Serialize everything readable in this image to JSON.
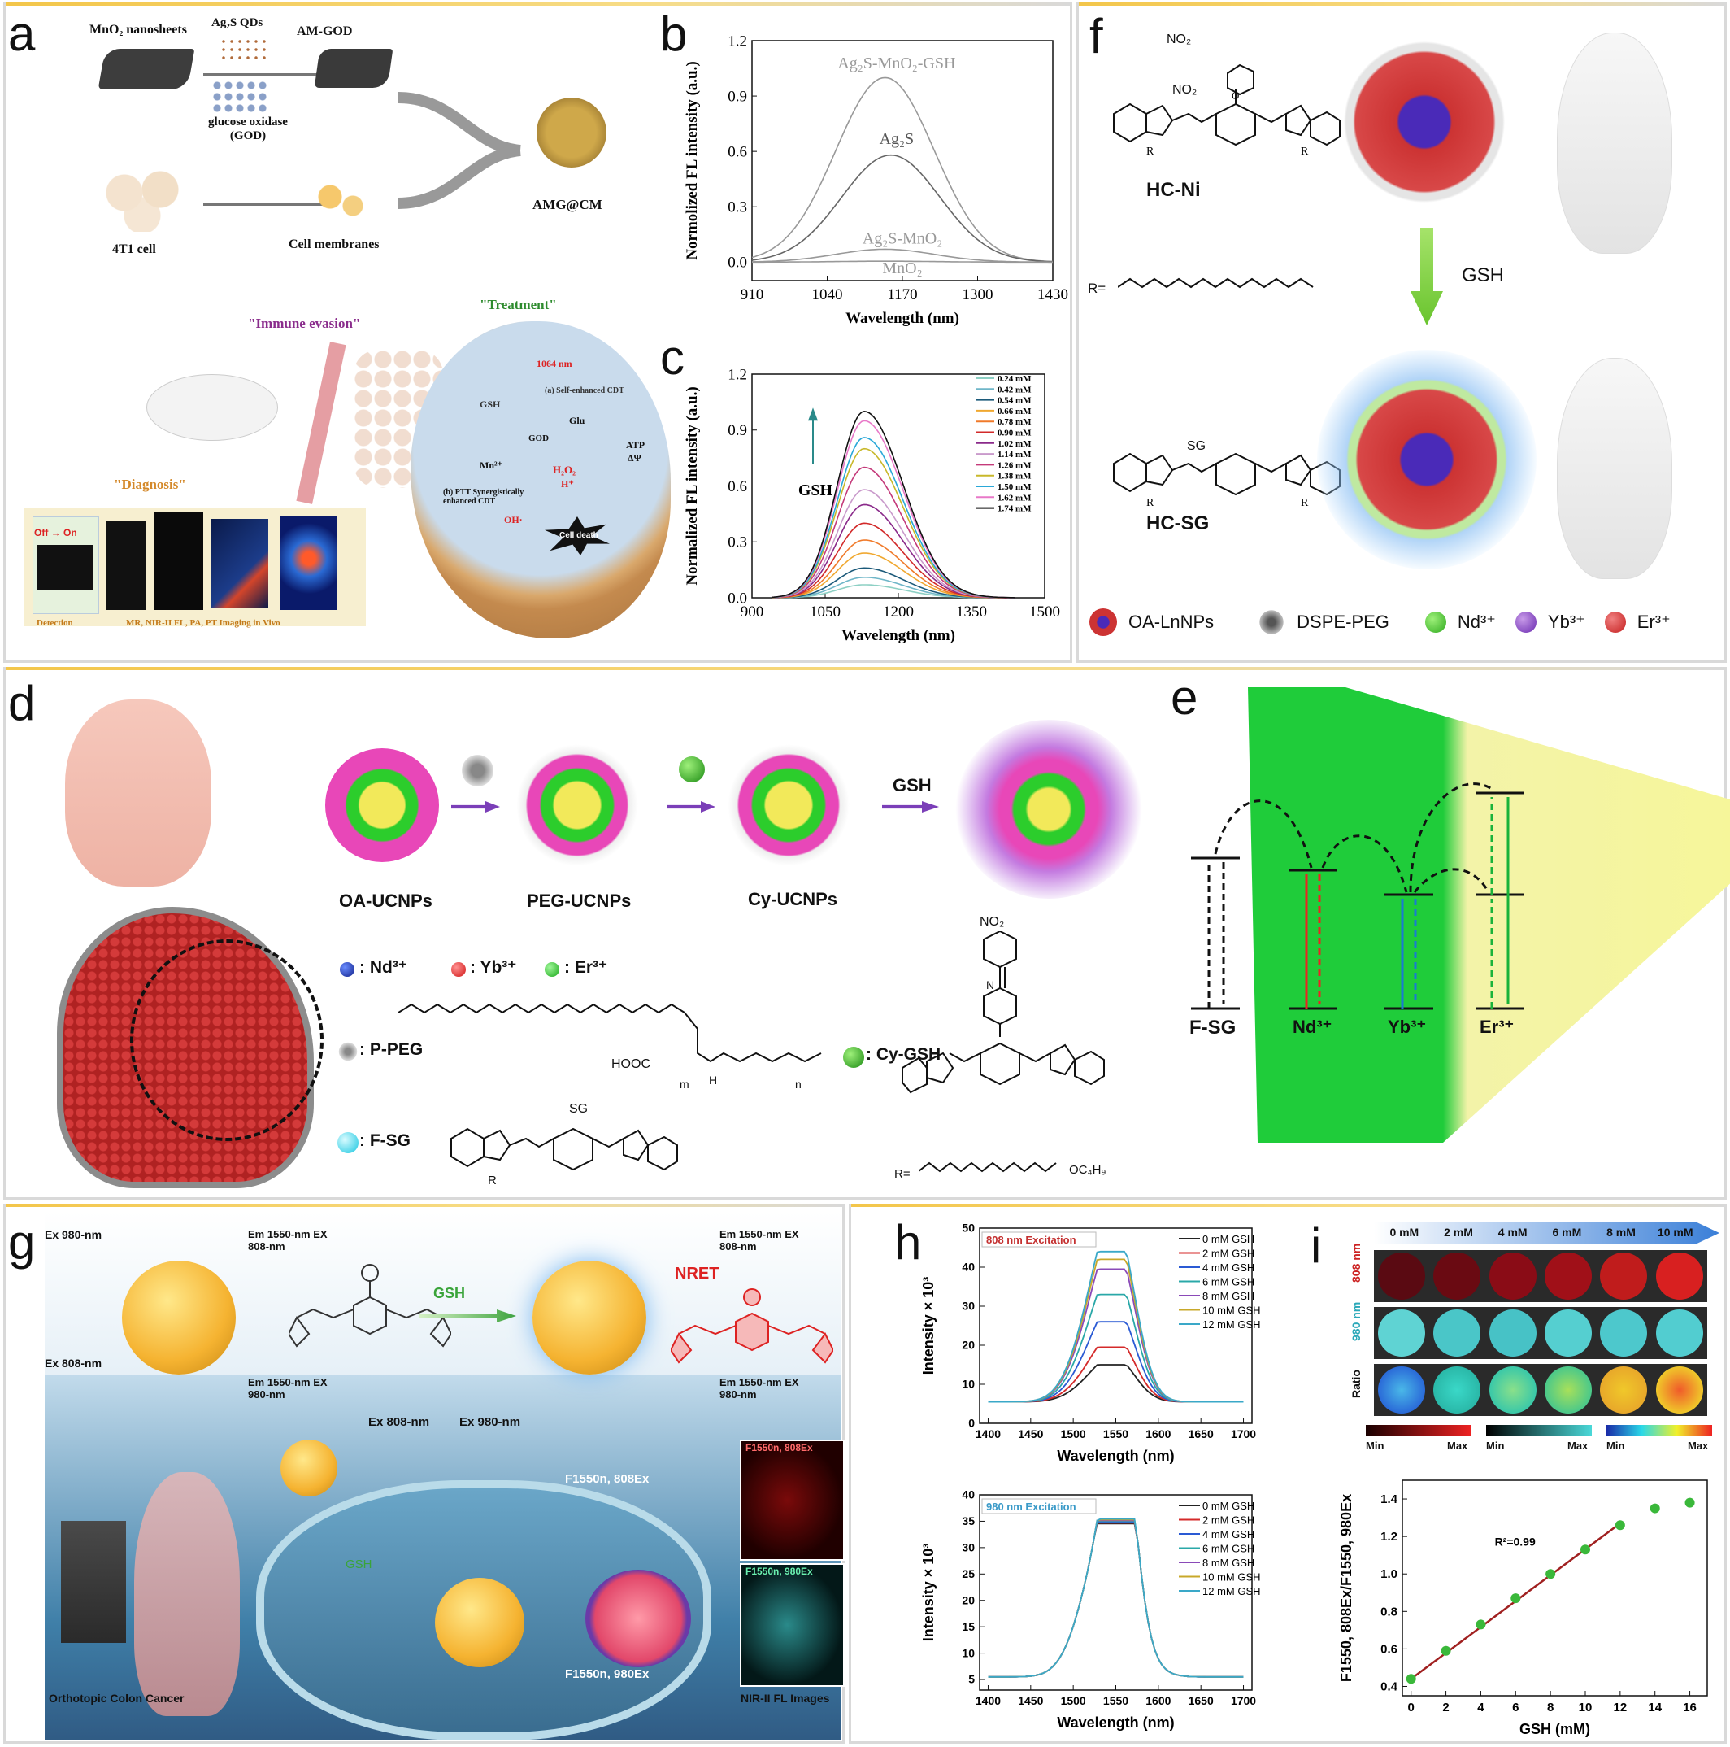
{
  "panels": {
    "a": {
      "label": "a",
      "mno2": "MnO₂ nanosheets",
      "qds": "Ag₂S QDs",
      "amgod": "AM-GOD",
      "god": "glucose oxidase (GOD)",
      "cell": "4T1 cell",
      "membranes": "Cell membranes",
      "amgcm": "AMG@CM",
      "immune": "\"Immune evasion\"",
      "treatment": "\"Treatment\"",
      "diagnosis": "\"Diagnosis\"",
      "offon": "Off → On",
      "detection": "Detection",
      "imaging": "MR, NIR-II FL, PA, PT Imaging in Vivo",
      "nm1064": "1064 nm",
      "gsh": "GSH",
      "glu": "Glu",
      "god2": "GOD",
      "mn": "Mn²⁺",
      "h2o2": "H₂O₂",
      "h": "H⁺",
      "oh": "OH·",
      "atp": "ATP",
      "dpsi": "ΔΨ",
      "celldeath": "Cell death",
      "cdt": "(a) Self-enhanced CDT",
      "ptt": "(b) PTT Synergistically enhanced CDT"
    },
    "f": {
      "label": "f",
      "no2a": "NO₂",
      "no2b": "NO₂",
      "hcni": "HC-Ni",
      "hcsg": "HC-SG",
      "r": "R=",
      "gsh": "GSH",
      "sg": "SG",
      "legend": [
        "OA-LnNPs",
        "DSPE-PEG",
        "Nd³⁺",
        "Yb³⁺",
        "Er³⁺"
      ]
    },
    "d": {
      "label": "d",
      "oa": "OA-UCNPs",
      "peg": "PEG-UCNPs",
      "cy": "Cy-UCNPs",
      "gsh": "GSH",
      "nd": ": Nd³⁺",
      "yb": ": Yb³⁺",
      "er": ": Er³⁺",
      "ppeg": ": P-PEG",
      "fsg": ": F-SG",
      "cygsh": ": Cy-GSH",
      "no2": "NO₂",
      "sg": "SG",
      "hooc": "HOOC",
      "m": "m",
      "n": "n",
      "h": "H",
      "nlabel": "N",
      "r": "R",
      "rchain": "R=",
      "oc4h9": "OC₄H₉"
    },
    "e": {
      "label": "e",
      "levels": [
        "F-SG",
        "Nd³⁺",
        "Yb³⁺",
        "Er³⁺"
      ]
    },
    "g": {
      "label": "g",
      "ex980": "Ex 980-nm",
      "ex808": "Ex 808-nm",
      "em1550_808": "Em 1550-nm EX 808-nm",
      "em1550_980": "Em 1550-nm EX 980-nm",
      "em1550_808r": "Em 1550-nm EX 808-nm",
      "em1550_980r": "Em 1550-nm EX 980-nm",
      "gsh": "GSH",
      "nret": "NRET",
      "ex808b": "Ex 808-nm",
      "ex980b": "Ex 980-nm",
      "f808": "F1550n, 808Ex",
      "f980": "F1550n, 980Ex",
      "f808b": "F1550n, 808Ex",
      "gsh2": "GSH",
      "f808img": "F1550n, 808Ex",
      "f980img": "F1550n, 980Ex",
      "nir": "NIR-II FL Images",
      "colon": "Orthotopic Colon Cancer"
    },
    "i": {
      "label": "i",
      "conc": [
        "0 mM",
        "2 mM",
        "4 mM",
        "6 mM",
        "8 mM",
        "10 mM"
      ],
      "rows": [
        "808 nm",
        "980 nm",
        "Ratio"
      ],
      "minmax": [
        "Min",
        "Max",
        "Min",
        "Max",
        "Min",
        "Max"
      ]
    }
  },
  "chart_data": [
    {
      "panel": "b",
      "type": "line",
      "xlabel": "Wavelength (nm)",
      "ylabel": "Normolized FL intensity (a.u.)",
      "xlim": [
        910,
        1430
      ],
      "ylim": [
        -0.1,
        1.2
      ],
      "xticks": [
        "910",
        "1040",
        "1170",
        "1300",
        "1430"
      ],
      "yticks": [
        "0.0",
        "0.3",
        "0.6",
        "0.9",
        "1.2"
      ],
      "series": [
        {
          "name": "Ag₂S-MnO₂-GSH",
          "peak": 1.0,
          "center": 1140,
          "width": 85
        },
        {
          "name": "Ag₂S",
          "peak": 0.58,
          "center": 1150,
          "width": 85
        },
        {
          "name": "Ag₂S-MnO₂",
          "peak": 0.07,
          "center": 1140,
          "width": 85
        },
        {
          "name": "MnO₂",
          "peak": 0.005,
          "center": 1140,
          "width": 85
        }
      ]
    },
    {
      "panel": "c",
      "type": "line",
      "xlabel": "Wavelength (nm)",
      "ylabel": "Normalized FL intensity (a.u.)",
      "xlim": [
        900,
        1500
      ],
      "ylim": [
        0,
        1.2
      ],
      "xticks": [
        "900",
        "1050",
        "1200",
        "1350",
        "1500"
      ],
      "yticks": [
        "0.0",
        "0.3",
        "0.6",
        "0.9",
        "1.2"
      ],
      "annotation": "GSH",
      "series": [
        {
          "name": "0.24 mM",
          "peak": 0.07
        },
        {
          "name": "0.42 mM",
          "peak": 0.11
        },
        {
          "name": "0.54 mM",
          "peak": 0.16
        },
        {
          "name": "0.66 mM",
          "peak": 0.24
        },
        {
          "name": "0.78 mM",
          "peak": 0.31
        },
        {
          "name": "0.90 mM",
          "peak": 0.4
        },
        {
          "name": "1.02 mM",
          "peak": 0.5
        },
        {
          "name": "1.14 mM",
          "peak": 0.58
        },
        {
          "name": "1.26 mM",
          "peak": 0.7
        },
        {
          "name": "1.38 mM",
          "peak": 0.8
        },
        {
          "name": "1.50 mM",
          "peak": 0.86
        },
        {
          "name": "1.62 mM",
          "peak": 0.95
        },
        {
          "name": "1.74 mM",
          "peak": 1.0
        }
      ]
    },
    {
      "panel": "h-top",
      "type": "line",
      "tag": "808 nm Excitation",
      "xlabel": "Wavelength (nm)",
      "ylabel": "Intensity × 10³",
      "xlim": [
        1390,
        1710
      ],
      "ylim": [
        0,
        50
      ],
      "xticks": [
        "1400",
        "1450",
        "1500",
        "1550",
        "1600",
        "1650",
        "1700"
      ],
      "yticks": [
        "0",
        "10",
        "20",
        "30",
        "40",
        "50"
      ],
      "series": [
        {
          "name": "0 mM GSH",
          "peak": 15
        },
        {
          "name": "2 mM GSH",
          "peak": 19.5
        },
        {
          "name": "4 mM GSH",
          "peak": 26
        },
        {
          "name": "6 mM GSH",
          "peak": 33
        },
        {
          "name": "8 mM GSH",
          "peak": 39.5
        },
        {
          "name": "10 mM GSH",
          "peak": 42
        },
        {
          "name": "12 mM GSH",
          "peak": 44
        }
      ]
    },
    {
      "panel": "h-bottom",
      "type": "line",
      "tag": "980 nm Excitation",
      "xlabel": "Wavelength (nm)",
      "ylabel": "Intensity × 10³",
      "xlim": [
        1390,
        1710
      ],
      "ylim": [
        3,
        40
      ],
      "xticks": [
        "1400",
        "1450",
        "1500",
        "1550",
        "1600",
        "1650",
        "1700"
      ],
      "yticks": [
        "5",
        "10",
        "15",
        "20",
        "25",
        "30",
        "35",
        "40"
      ],
      "series": [
        {
          "name": "0 mM GSH",
          "peak": 35
        },
        {
          "name": "2 mM GSH",
          "peak": 35
        },
        {
          "name": "4 mM GSH",
          "peak": 35
        },
        {
          "name": "6 mM GSH",
          "peak": 35
        },
        {
          "name": "8 mM GSH",
          "peak": 35
        },
        {
          "name": "10 mM GSH",
          "peak": 35
        },
        {
          "name": "12 mM GSH",
          "peak": 35
        }
      ]
    },
    {
      "panel": "i-bottom",
      "type": "scatter",
      "xlabel": "GSH (mM)",
      "ylabel": "F1550, 808Ex/F1550, 980Ex",
      "xlim": [
        -0.5,
        17
      ],
      "ylim": [
        0.35,
        1.5
      ],
      "xticks": [
        "0",
        "2",
        "4",
        "6",
        "8",
        "10",
        "12",
        "14",
        "16"
      ],
      "yticks": [
        "0.4",
        "0.6",
        "0.8",
        "1.0",
        "1.2",
        "1.4"
      ],
      "annotation": "R²=0.99",
      "x": [
        0,
        2,
        4,
        6,
        8,
        10,
        12,
        14,
        16
      ],
      "y": [
        0.44,
        0.59,
        0.73,
        0.87,
        1.0,
        1.13,
        1.26,
        1.35,
        1.38
      ],
      "fit": {
        "x": [
          0,
          12
        ],
        "y": [
          0.44,
          1.27
        ]
      }
    }
  ],
  "colors": {
    "gold": "#f3c64a",
    "green": "#1fcc3a",
    "purple": "#7a3fb0",
    "red": "#e52a2a"
  }
}
